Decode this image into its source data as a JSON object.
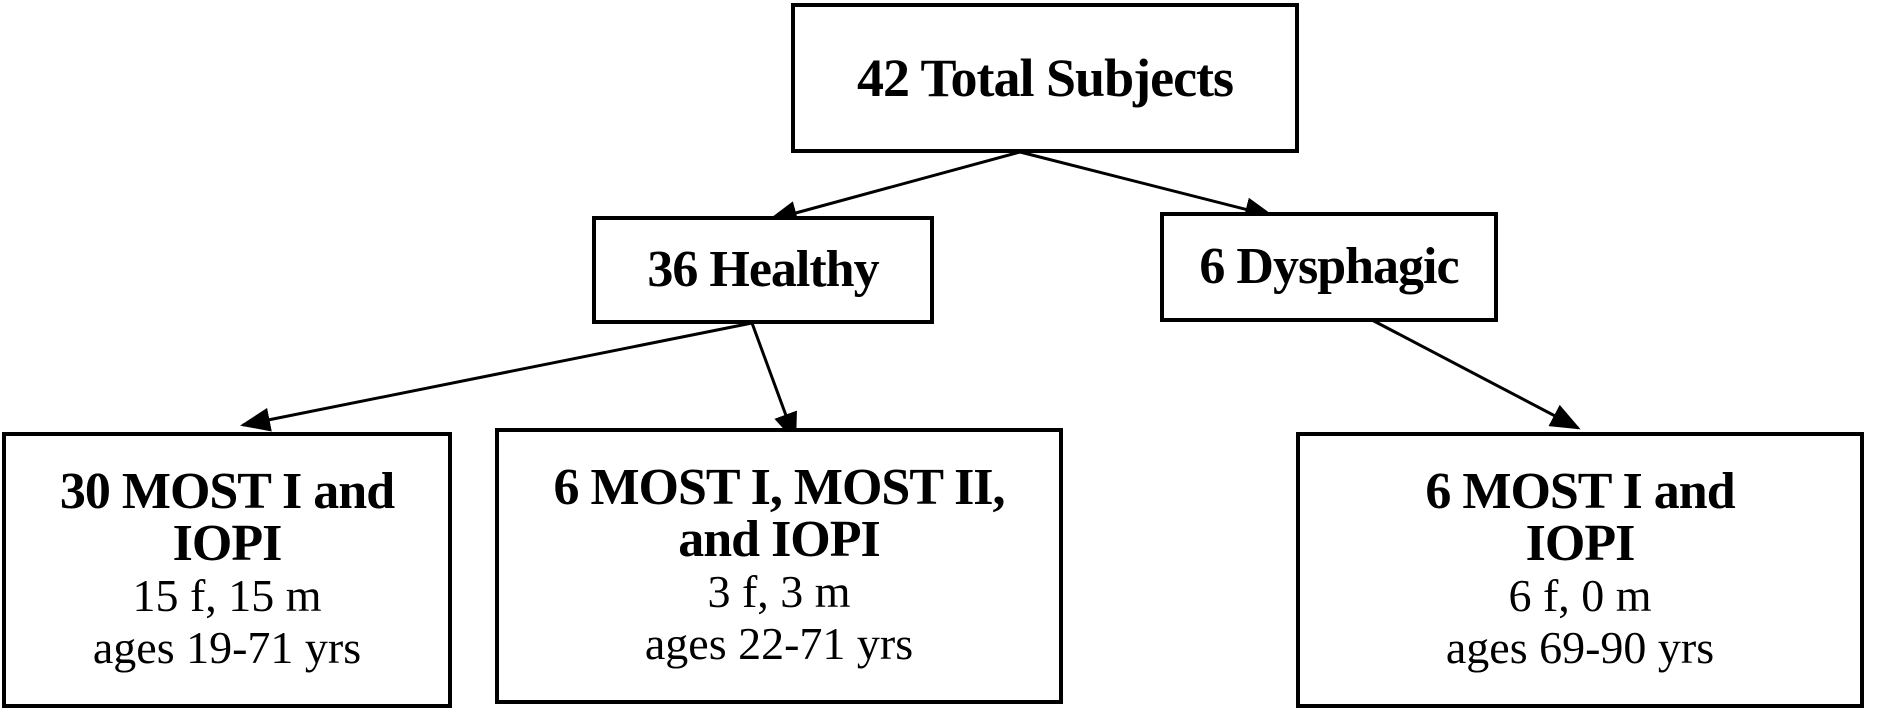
{
  "nodes": {
    "total": {
      "title": "42 Total Subjects"
    },
    "healthy": {
      "title": "36 Healthy"
    },
    "dysphagic": {
      "title": "6 Dysphagic"
    },
    "group1": {
      "title_line1": "30 MOST I and",
      "title_line2": "IOPI",
      "sex": "15 f, 15 m",
      "ages": "ages 19-71 yrs"
    },
    "group2": {
      "title_line1": "6 MOST I, MOST II,",
      "title_line2": "and IOPI",
      "sex": "3 f, 3 m",
      "ages": "ages 22-71 yrs"
    },
    "group3": {
      "title_line1": "6 MOST I and",
      "title_line2": "IOPI",
      "sex": "6 f, 0 m",
      "ages": "ages 69-90 yrs"
    }
  },
  "edges": [
    {
      "from": "total",
      "to": "healthy"
    },
    {
      "from": "total",
      "to": "dysphagic"
    },
    {
      "from": "healthy",
      "to": "group1"
    },
    {
      "from": "healthy",
      "to": "group2"
    },
    {
      "from": "dysphagic",
      "to": "group3"
    }
  ],
  "colors": {
    "stroke": "#000000",
    "background": "#ffffff"
  }
}
